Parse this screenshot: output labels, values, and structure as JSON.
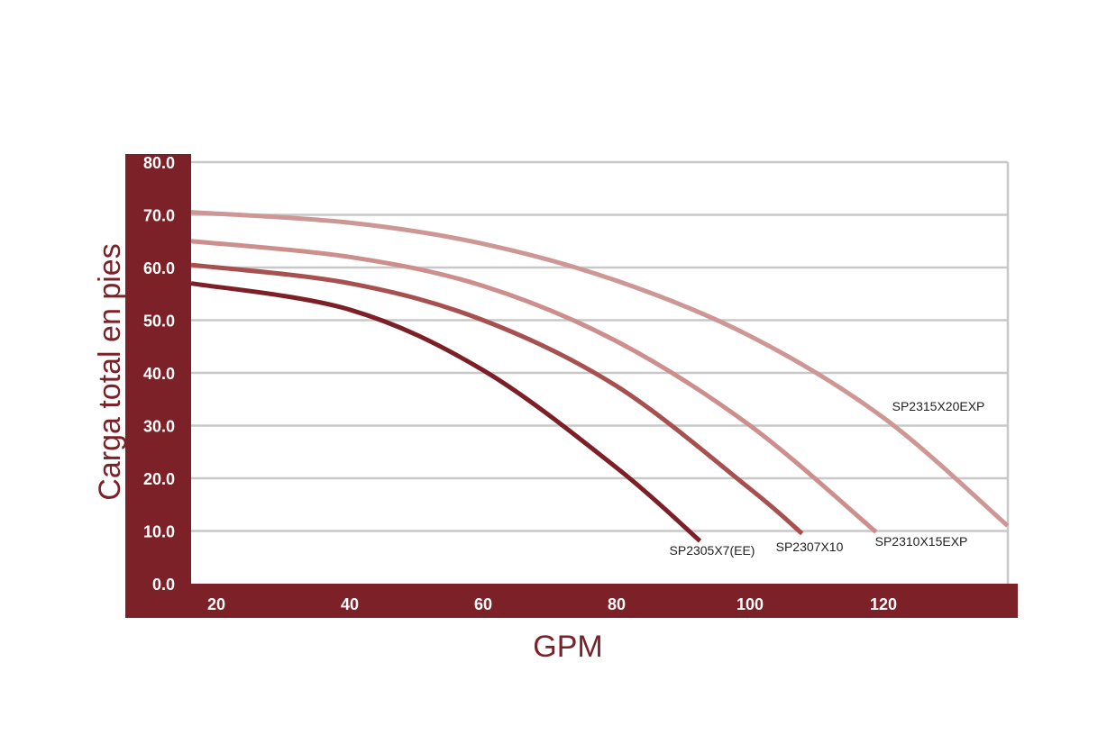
{
  "chart_data": {
    "type": "line",
    "title": "",
    "xlabel": "GPM",
    "ylabel": "Carga total en pies",
    "xlim": [
      16.2,
      138.6
    ],
    "ylim": [
      0,
      80
    ],
    "xticks": [
      "20",
      "40",
      "60",
      "80",
      "100",
      "120"
    ],
    "xtick_values": [
      20,
      40,
      60,
      80,
      100,
      120
    ],
    "yticks": [
      "0.0",
      "10.0",
      "20.0",
      "30.0",
      "40.0",
      "50.0",
      "60.0",
      "70.0",
      "80.0"
    ],
    "ytick_values": [
      0,
      10,
      20,
      30,
      40,
      50,
      60,
      70,
      80
    ],
    "grid": true,
    "colors": {
      "band": "#7d2128",
      "grid": "#c8c8c8"
    },
    "series": [
      {
        "name": "SP2305X7(EE)",
        "color": "#7d1f27",
        "x": [
          16.2,
          40,
          60,
          80,
          92.5
        ],
        "y": [
          57,
          52,
          40.5,
          22,
          8.1
        ]
      },
      {
        "name": "SP2307X10",
        "color": "#a6504f",
        "x": [
          16.2,
          40,
          60,
          80,
          100,
          107.8
        ],
        "y": [
          60.5,
          57,
          50,
          37.5,
          18,
          9.5
        ]
      },
      {
        "name": "SP2310X15EXP",
        "color": "#cc8f8d",
        "x": [
          16.2,
          40,
          60,
          80,
          100,
          118.9
        ],
        "y": [
          65,
          62,
          56.5,
          46,
          30,
          9.8
        ]
      },
      {
        "name": "SP2315X20EXP",
        "color": "#cc9795",
        "x": [
          16.2,
          40,
          60,
          80,
          100,
          120,
          138.6
        ],
        "y": [
          70.5,
          68.5,
          64.5,
          57.5,
          47,
          31.5,
          11
        ]
      }
    ]
  }
}
